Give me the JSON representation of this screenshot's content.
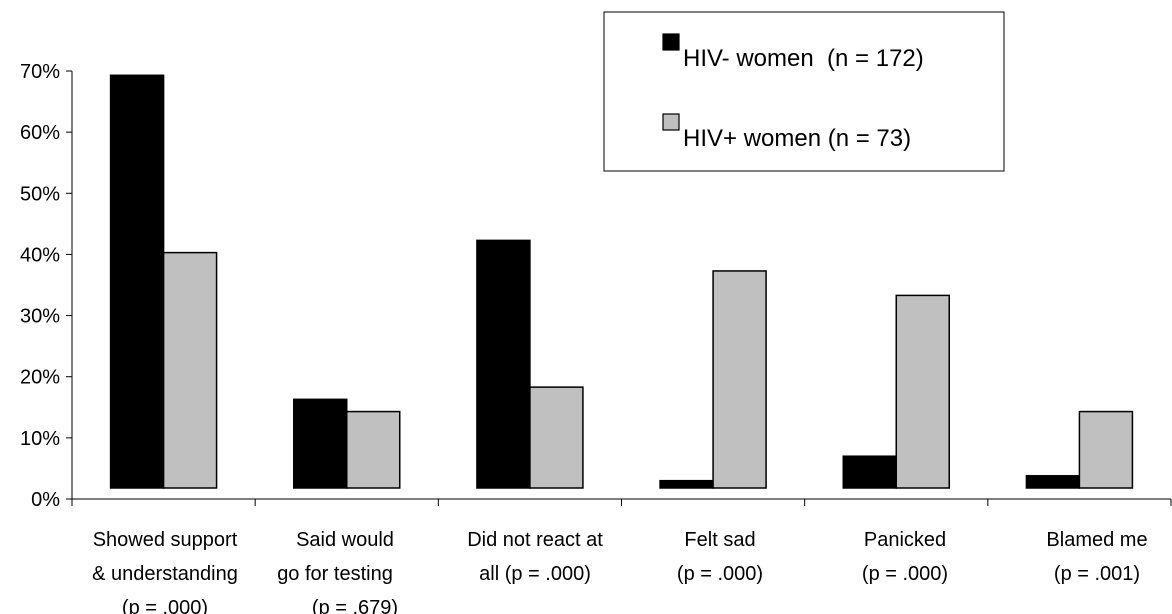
{
  "chart_data": {
    "type": "bar",
    "categories": [
      [
        "Showed support",
        "& understanding",
        "(p = .000)"
      ],
      [
        "Said would",
        "go for testing",
        "(p = .679)"
      ],
      [
        "Did not react at",
        "all (p = .000)"
      ],
      [
        "Felt sad",
        "(p = .000)"
      ],
      [
        "Panicked",
        "(p = .000)"
      ],
      [
        "Blamed me",
        "(p = .001)"
      ]
    ],
    "series": [
      {
        "name": "HIV- women  (n = 172)",
        "color": "#000000",
        "values": [
          67.5,
          14.5,
          40.5,
          1.2,
          5.2,
          2.0
        ]
      },
      {
        "name": "HIV+ women (n = 73)",
        "color": "#c0c0c0",
        "values": [
          38.5,
          12.5,
          16.5,
          35.5,
          31.5,
          12.5
        ]
      }
    ],
    "yticks": [
      "0%",
      "10%",
      "20%",
      "30%",
      "40%",
      "50%",
      "60%",
      "70%"
    ],
    "ylim": [
      0,
      70
    ],
    "legend_position": "top-right",
    "grid": false
  }
}
